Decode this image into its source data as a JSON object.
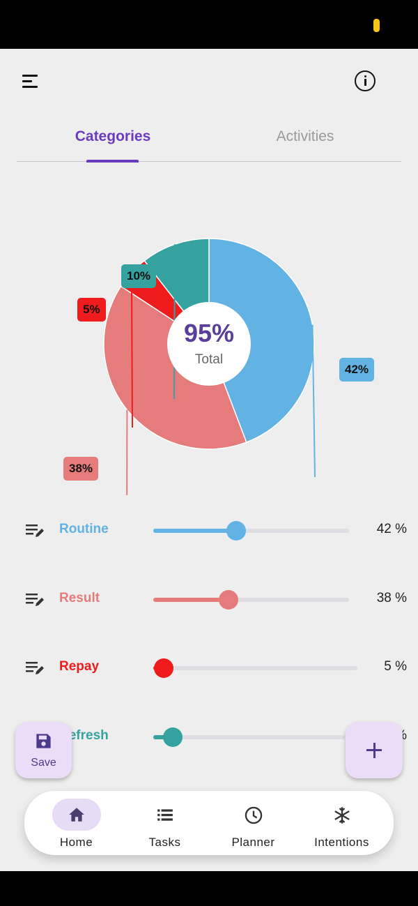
{
  "header": {
    "menu_icon": "menu-icon",
    "info_icon": "info-icon"
  },
  "tabs": [
    {
      "label": "Categories",
      "active": true
    },
    {
      "label": "Activities",
      "active": false
    }
  ],
  "chart_data": {
    "type": "pie",
    "donut": true,
    "center_value": "95%",
    "center_label": "Total",
    "slices": [
      {
        "label": "Routine",
        "value": 42,
        "badge": "42%",
        "color": "#62b2e4"
      },
      {
        "label": "Result",
        "value": 38,
        "badge": "38%",
        "color": "#e57b7b"
      },
      {
        "label": "Repay",
        "value": 5,
        "badge": "5%",
        "color": "#ee1c1c"
      },
      {
        "label": "Refresh",
        "value": 10,
        "badge": "10%",
        "color": "#36a29f"
      }
    ]
  },
  "categories": [
    {
      "name": "Routine",
      "value_text": "42 %",
      "level": 42,
      "color": "#62b2e4"
    },
    {
      "name": "Result",
      "value_text": "38 %",
      "level": 38,
      "color": "#e57b7b"
    },
    {
      "name": "Repay",
      "value_text": "5 %",
      "level": 5,
      "color": "#ee1c1c"
    },
    {
      "name": "Refresh",
      "value_text": "10 %",
      "level": 10,
      "color": "#36a29f"
    }
  ],
  "fab_save": {
    "label": "Save",
    "icon": "save-icon"
  },
  "fab_add": {
    "icon": "plus-icon"
  },
  "bottom_nav": [
    {
      "label": "Home",
      "icon": "home-icon",
      "active": true
    },
    {
      "label": "Tasks",
      "icon": "list-icon",
      "active": false
    },
    {
      "label": "Planner",
      "icon": "clock-icon",
      "active": false
    },
    {
      "label": "Intentions",
      "icon": "snowflake-icon",
      "active": false
    }
  ],
  "colors": {
    "accent": "#6a3bbf",
    "background": "#eeeeee",
    "fab": "#ebdcf8"
  }
}
